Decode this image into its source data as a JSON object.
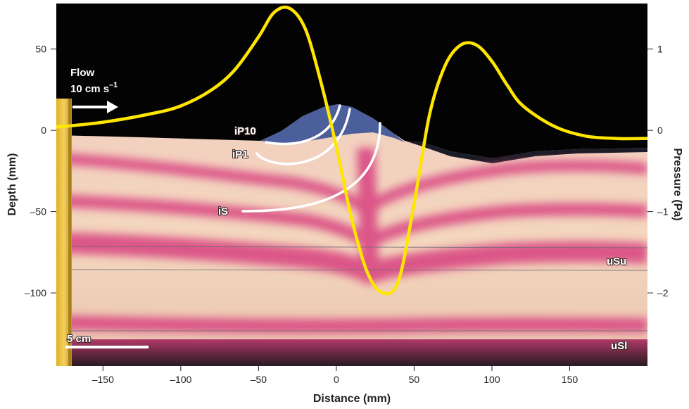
{
  "chart_data": {
    "type": "line",
    "xlabel": "Distance (mm)",
    "ylabel": "Depth (mm)",
    "ylabel_right": "Pressure (Pa)",
    "xlim": [
      -180,
      200
    ],
    "ylim": [
      -145,
      78
    ],
    "ylim_right": [
      -2.9,
      1.56
    ],
    "x_ticks": [
      -150,
      -100,
      -50,
      0,
      50,
      100,
      150
    ],
    "y_ticks": [
      50,
      0,
      -50,
      -100
    ],
    "y_ticks_right": [
      1,
      0,
      -1,
      -2
    ],
    "x_tick_labels": [
      "–150",
      "–100",
      "–50",
      "0",
      "50",
      "100",
      "150"
    ],
    "y_tick_labels": [
      "50",
      "0",
      "–50",
      "–100"
    ],
    "y_tick_labels_right": [
      "1",
      "0",
      "–1",
      "–2"
    ],
    "series": [
      {
        "color": "#ffe600",
        "x": [
          -180,
          -150,
          -120,
          -100,
          -80,
          -65,
          -50,
          -40,
          -30,
          -20,
          -10,
          0,
          10,
          20,
          30,
          40,
          50,
          60,
          70,
          80,
          90,
          100,
          110,
          120,
          140,
          160,
          180,
          200
        ],
        "y": [
          0.04,
          0.1,
          0.2,
          0.3,
          0.5,
          0.75,
          1.15,
          1.45,
          1.5,
          1.25,
          0.6,
          -0.2,
          -1.1,
          -1.75,
          -2.0,
          -1.85,
          -0.9,
          0.2,
          0.8,
          1.05,
          1.05,
          0.85,
          0.55,
          0.3,
          0.05,
          -0.07,
          -0.1,
          -0.1
        ]
      }
    ],
    "annotations": {
      "flow": "Flow",
      "flow_speed": "10 cm s",
      "flow_speed_exp": "–1",
      "ip10": "iP10",
      "ip1": "iP1",
      "is": "iS",
      "usu": "uSu",
      "usl": "uSl",
      "scale": "5 cm"
    },
    "colors": {
      "sky": "#030303",
      "sand": "#f0d0b6",
      "pink_band": "#d8417f",
      "mound": "#4a5f9c",
      "pressure_line": "#ffe600"
    }
  }
}
